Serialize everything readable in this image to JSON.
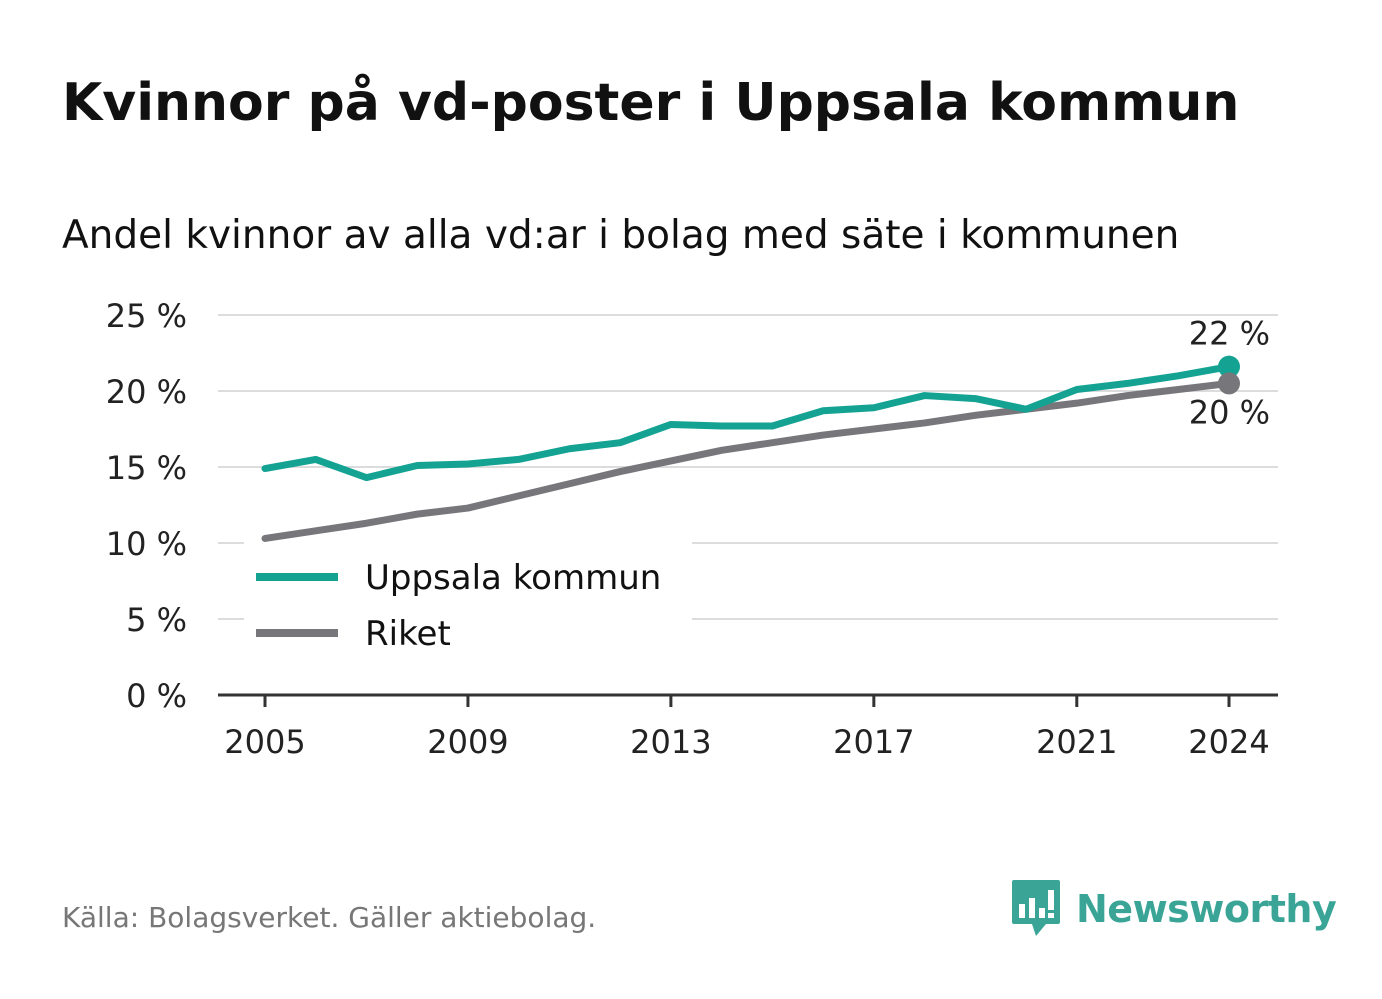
{
  "title": "Kvinnor på vd-poster i Uppsala kommun",
  "subtitle": "Andel kvinnor av alla vd:ar i bolag med säte i kommunen",
  "source": "Källa: Bolagsverket. Gäller aktiebolag.",
  "brand": {
    "name": "Newsworthy",
    "logo_icon": "newsworthy-chart-bubble-icon"
  },
  "colors": {
    "uppsala": "#14a393",
    "riket": "#77767b",
    "grid": "#dcdcdc",
    "axis": "#333333",
    "text": "#111111",
    "source": "#777777"
  },
  "chart_data": {
    "type": "line",
    "title": "Kvinnor på vd-poster i Uppsala kommun",
    "subtitle": "Andel kvinnor av alla vd:ar i bolag med säte i kommunen",
    "xlabel": "",
    "ylabel": "",
    "x": [
      2005,
      2006,
      2007,
      2008,
      2009,
      2010,
      2011,
      2012,
      2013,
      2014,
      2015,
      2016,
      2017,
      2018,
      2019,
      2020,
      2021,
      2022,
      2023,
      2024
    ],
    "xlim": [
      2005,
      2024
    ],
    "x_ticks": [
      2005,
      2009,
      2013,
      2017,
      2021,
      2024
    ],
    "x_tick_labels": [
      "2005",
      "2009",
      "2013",
      "2017",
      "2021",
      "2024"
    ],
    "ylim": [
      0,
      25
    ],
    "y_ticks": [
      0,
      5,
      10,
      15,
      20,
      25
    ],
    "y_tick_labels": [
      "0 %",
      "5 %",
      "10 %",
      "15 %",
      "20 %",
      "25 %"
    ],
    "grid": true,
    "legend_position": "lower-left",
    "series": [
      {
        "name": "Uppsala kommun",
        "color": "#14a393",
        "values": [
          14.9,
          15.5,
          14.3,
          15.1,
          15.2,
          15.5,
          16.2,
          16.6,
          17.8,
          17.7,
          17.7,
          18.7,
          18.9,
          19.7,
          19.5,
          18.8,
          20.1,
          20.5,
          21.0,
          21.6
        ],
        "end_label": "22 %"
      },
      {
        "name": "Riket",
        "color": "#77767b",
        "values": [
          10.3,
          10.8,
          11.3,
          11.9,
          12.3,
          13.1,
          13.9,
          14.7,
          15.4,
          16.1,
          16.6,
          17.1,
          17.5,
          17.9,
          18.4,
          18.8,
          19.2,
          19.7,
          20.1,
          20.5
        ],
        "end_label": "20 %"
      }
    ]
  }
}
